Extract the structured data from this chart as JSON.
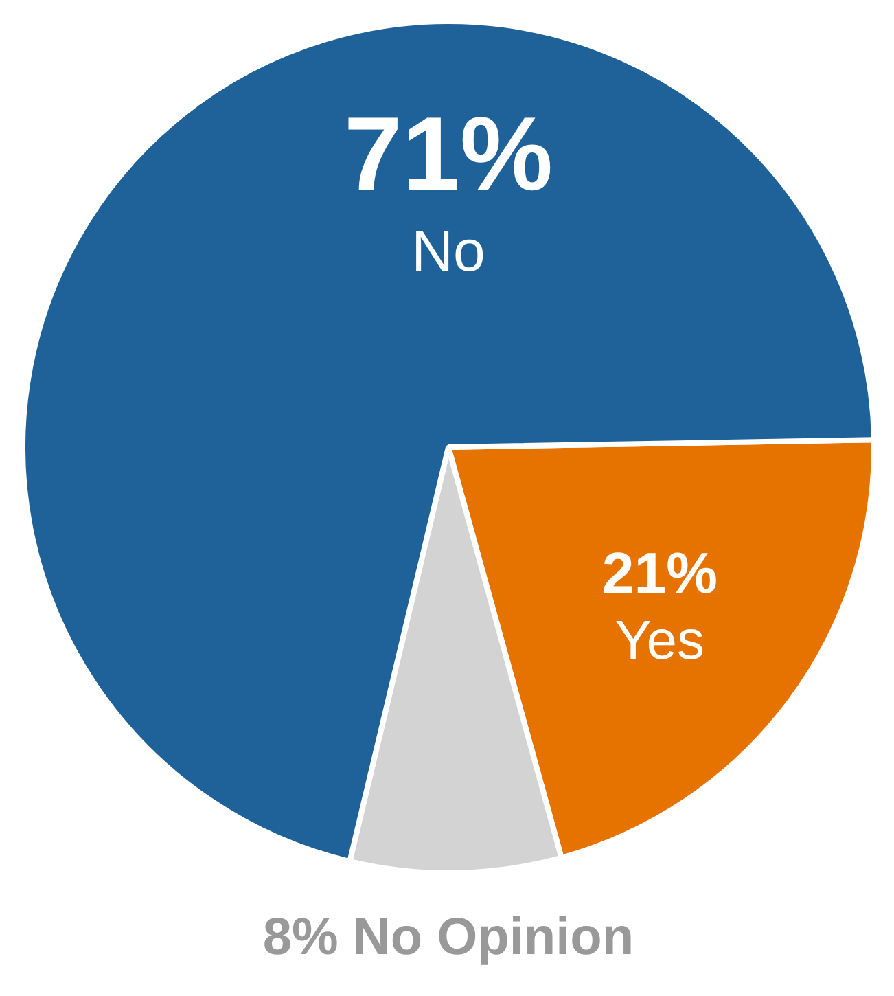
{
  "chart_data": {
    "type": "pie",
    "categories": [
      "Yes",
      "No Opinion",
      "No"
    ],
    "values": [
      21,
      8,
      71
    ],
    "colors": [
      "#e67300",
      "#d3d3d3",
      "#1f6199"
    ],
    "value_labels": [
      "21%",
      "8%",
      "71%"
    ]
  }
}
